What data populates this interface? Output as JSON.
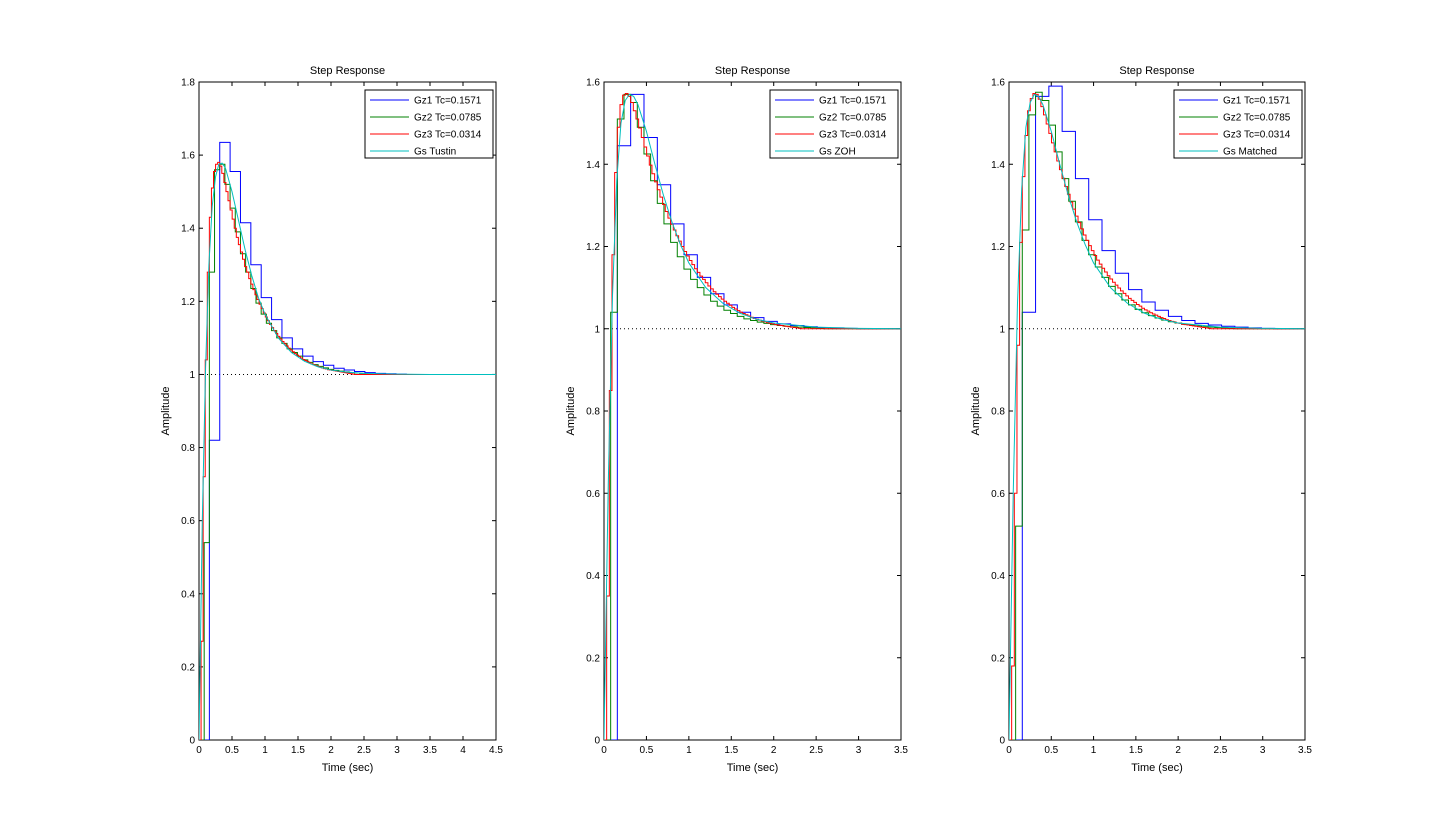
{
  "chart_data": [
    {
      "type": "line",
      "title": "Step Response",
      "xlabel": "Time (sec)",
      "ylabel": "Amplitude",
      "xlim": [
        0,
        4.5
      ],
      "ylim": [
        0,
        1.8
      ],
      "xticks": [
        0,
        0.5,
        1,
        1.5,
        2,
        2.5,
        3,
        3.5,
        4,
        4.5
      ],
      "yticks": [
        0,
        0.2,
        0.4,
        0.6,
        0.8,
        1,
        1.2,
        1.4,
        1.6,
        1.8
      ],
      "xtick_labels": [
        "0",
        "0.5",
        "1",
        "1.5",
        "2",
        "2.5",
        "3",
        "3.5",
        "4",
        "4.5"
      ],
      "ytick_labels": [
        "0",
        "0.2",
        "0.4",
        "0.6",
        "0.8",
        "1",
        "1.2",
        "1.4",
        "1.6",
        "1.8"
      ],
      "legend_position": "top-right",
      "final_value": 1,
      "series": [
        {
          "name": "Gz1 Tc=0.1571",
          "color": "#0000ff",
          "style": "stairs",
          "Ts": 0.1571,
          "y": [
            0,
            0.82,
            1.635,
            1.555,
            1.415,
            1.3,
            1.21,
            1.15,
            1.1,
            1.07,
            1.05,
            1.035,
            1.025,
            1.017,
            1.012,
            1.008,
            1.005,
            1.003,
            1.002,
            1.001,
            1.0
          ]
        },
        {
          "name": "Gz2 Tc=0.0785",
          "color": "#008000",
          "style": "stairs",
          "Ts": 0.0785,
          "y": [
            0,
            0.54,
            1.28,
            1.56,
            1.575,
            1.52,
            1.455,
            1.39,
            1.33,
            1.28,
            1.235,
            1.195,
            1.165,
            1.14,
            1.12,
            1.1,
            1.085,
            1.07,
            1.06,
            1.05,
            1.04,
            1.033,
            1.027,
            1.022,
            1.018,
            1.014,
            1.011,
            1.009,
            1.007,
            1.005,
            1.004,
            1.003,
            1.002,
            1.001,
            1.0
          ]
        },
        {
          "name": "Gz3 Tc=0.0314",
          "color": "#ff0000",
          "style": "stairs",
          "Ts": 0.0314,
          "y": [
            0,
            0.27,
            0.72,
            1.04,
            1.28,
            1.43,
            1.51,
            1.555,
            1.575,
            1.58,
            1.57,
            1.55,
            1.525,
            1.5,
            1.475,
            1.45,
            1.425,
            1.4,
            1.375,
            1.355,
            1.335,
            1.315,
            1.295,
            1.28,
            1.262,
            1.247,
            1.232,
            1.218,
            1.205,
            1.192,
            1.18,
            1.168,
            1.157,
            1.147,
            1.137,
            1.128,
            1.12,
            1.112,
            1.104,
            1.097,
            1.09,
            1.084,
            1.078,
            1.072,
            1.067,
            1.062,
            1.057,
            1.053,
            1.049,
            1.045,
            1.041,
            1.038,
            1.035,
            1.032,
            1.029,
            1.027,
            1.024,
            1.022,
            1.02,
            1.018,
            1.016,
            1.015,
            1.013,
            1.012,
            1.011,
            1.01,
            1.009,
            1.008,
            1.007,
            1.006,
            1.005,
            1.004,
            1.003,
            1.002,
            1.001,
            1.0
          ]
        },
        {
          "name": "Gs Tustin",
          "color": "#00bfbf",
          "style": "line",
          "x": [
            0,
            0.05,
            0.1,
            0.15,
            0.2,
            0.25,
            0.3,
            0.35,
            0.4,
            0.5,
            0.6,
            0.7,
            0.8,
            0.9,
            1.0,
            1.2,
            1.4,
            1.6,
            1.8,
            2.0,
            2.2,
            2.5,
            3.0,
            3.5,
            4.0,
            4.5
          ],
          "y": [
            0,
            0.6,
            1.02,
            1.3,
            1.46,
            1.54,
            1.575,
            1.578,
            1.565,
            1.5,
            1.42,
            1.34,
            1.27,
            1.21,
            1.165,
            1.1,
            1.06,
            1.036,
            1.021,
            1.012,
            1.007,
            1.003,
            1.001,
            1.0,
            1.0,
            1.0
          ]
        }
      ]
    },
    {
      "type": "line",
      "title": "Step Response",
      "xlabel": "Time (sec)",
      "ylabel": "Amplitude",
      "xlim": [
        0,
        3.5
      ],
      "ylim": [
        0,
        1.6
      ],
      "xticks": [
        0,
        0.5,
        1,
        1.5,
        2,
        2.5,
        3,
        3.5
      ],
      "yticks": [
        0,
        0.2,
        0.4,
        0.6,
        0.8,
        1,
        1.2,
        1.4,
        1.6
      ],
      "xtick_labels": [
        "0",
        "0.5",
        "1",
        "1.5",
        "2",
        "2.5",
        "3",
        "3.5"
      ],
      "ytick_labels": [
        "0",
        "0.2",
        "0.4",
        "0.6",
        "0.8",
        "1",
        "1.2",
        "1.4",
        "1.6"
      ],
      "legend_position": "top-right",
      "final_value": 1,
      "series": [
        {
          "name": "Gz1 Tc=0.1571",
          "color": "#0000ff",
          "style": "stairs",
          "Ts": 0.1571,
          "y": [
            0,
            1.445,
            1.57,
            1.465,
            1.35,
            1.255,
            1.18,
            1.125,
            1.085,
            1.058,
            1.04,
            1.027,
            1.018,
            1.012,
            1.008,
            1.005,
            1.003,
            1.002,
            1.001,
            1.0
          ]
        },
        {
          "name": "Gz2 Tc=0.0785",
          "color": "#008000",
          "style": "stairs",
          "Ts": 0.0785,
          "y": [
            0,
            1.04,
            1.51,
            1.57,
            1.55,
            1.49,
            1.425,
            1.36,
            1.305,
            1.255,
            1.21,
            1.175,
            1.145,
            1.12,
            1.1,
            1.082,
            1.067,
            1.055,
            1.045,
            1.037,
            1.03,
            1.024,
            1.02,
            1.016,
            1.013,
            1.01,
            1.008,
            1.006,
            1.005,
            1.004,
            1.003,
            1.002,
            1.001,
            1.0
          ]
        },
        {
          "name": "Gz3 Tc=0.0314",
          "color": "#ff0000",
          "style": "stairs",
          "Ts": 0.0314,
          "y": [
            0,
            0.35,
            0.85,
            1.18,
            1.38,
            1.49,
            1.545,
            1.568,
            1.572,
            1.565,
            1.55,
            1.53,
            1.51,
            1.488,
            1.465,
            1.442,
            1.42,
            1.398,
            1.377,
            1.357,
            1.338,
            1.32,
            1.302,
            1.285,
            1.269,
            1.254,
            1.24,
            1.226,
            1.213,
            1.2,
            1.188,
            1.177,
            1.166,
            1.156,
            1.146,
            1.137,
            1.128,
            1.12,
            1.112,
            1.104,
            1.097,
            1.09,
            1.084,
            1.078,
            1.072,
            1.067,
            1.062,
            1.057,
            1.052,
            1.048,
            1.044,
            1.04,
            1.037,
            1.034,
            1.031,
            1.028,
            1.025,
            1.023,
            1.021,
            1.019,
            1.017,
            1.015,
            1.013,
            1.012,
            1.01,
            1.009,
            1.008,
            1.007,
            1.006,
            1.005,
            1.004,
            1.003,
            1.002,
            1.001,
            1.0
          ]
        },
        {
          "name": "Gs ZOH",
          "color": "#00bfbf",
          "style": "line",
          "x": [
            0,
            0.05,
            0.1,
            0.15,
            0.2,
            0.25,
            0.3,
            0.35,
            0.4,
            0.5,
            0.6,
            0.7,
            0.8,
            0.9,
            1.0,
            1.2,
            1.4,
            1.6,
            1.8,
            2.0,
            2.5,
            3.0,
            3.5
          ],
          "y": [
            0,
            0.62,
            1.08,
            1.36,
            1.5,
            1.555,
            1.57,
            1.565,
            1.545,
            1.48,
            1.4,
            1.325,
            1.26,
            1.205,
            1.16,
            1.1,
            1.062,
            1.038,
            1.023,
            1.014,
            1.004,
            1.001,
            1.0
          ]
        }
      ]
    },
    {
      "type": "line",
      "title": "Step Response",
      "xlabel": "Time (sec)",
      "ylabel": "Amplitude",
      "xlim": [
        0,
        3.5
      ],
      "ylim": [
        0,
        1.6
      ],
      "xticks": [
        0,
        0.5,
        1,
        1.5,
        2,
        2.5,
        3,
        3.5
      ],
      "yticks": [
        0,
        0.2,
        0.4,
        0.6,
        0.8,
        1,
        1.2,
        1.4,
        1.6
      ],
      "xtick_labels": [
        "0",
        "0.5",
        "1",
        "1.5",
        "2",
        "2.5",
        "3",
        "3.5"
      ],
      "ytick_labels": [
        "0",
        "0.2",
        "0.4",
        "0.6",
        "0.8",
        "1",
        "1.2",
        "1.4",
        "1.6"
      ],
      "legend_position": "top-right",
      "final_value": 1,
      "series": [
        {
          "name": "Gz1 Tc=0.1571",
          "color": "#0000ff",
          "style": "stairs",
          "Ts": 0.1571,
          "y": [
            0,
            1.04,
            1.565,
            1.59,
            1.48,
            1.365,
            1.265,
            1.19,
            1.135,
            1.095,
            1.065,
            1.045,
            1.03,
            1.02,
            1.013,
            1.009,
            1.006,
            1.004,
            1.002,
            1.001,
            1.0
          ]
        },
        {
          "name": "Gz2 Tc=0.0785",
          "color": "#008000",
          "style": "stairs",
          "Ts": 0.0785,
          "y": [
            0,
            0.52,
            1.24,
            1.52,
            1.575,
            1.555,
            1.495,
            1.43,
            1.365,
            1.31,
            1.26,
            1.215,
            1.18,
            1.15,
            1.125,
            1.103,
            1.085,
            1.07,
            1.058,
            1.047,
            1.039,
            1.032,
            1.026,
            1.021,
            1.017,
            1.014,
            1.011,
            1.009,
            1.007,
            1.005,
            1.004,
            1.003,
            1.002,
            1.001,
            1.0
          ]
        },
        {
          "name": "Gz3 Tc=0.0314",
          "color": "#ff0000",
          "style": "stairs",
          "Ts": 0.0314,
          "y": [
            0,
            0.18,
            0.6,
            0.96,
            1.21,
            1.37,
            1.47,
            1.53,
            1.56,
            1.572,
            1.57,
            1.558,
            1.54,
            1.52,
            1.498,
            1.475,
            1.452,
            1.43,
            1.408,
            1.387,
            1.366,
            1.346,
            1.327,
            1.308,
            1.291,
            1.274,
            1.258,
            1.243,
            1.228,
            1.215,
            1.202,
            1.19,
            1.178,
            1.167,
            1.157,
            1.147,
            1.138,
            1.129,
            1.121,
            1.113,
            1.106,
            1.099,
            1.092,
            1.086,
            1.08,
            1.074,
            1.069,
            1.064,
            1.059,
            1.055,
            1.05,
            1.046,
            1.043,
            1.039,
            1.036,
            1.033,
            1.03,
            1.027,
            1.025,
            1.022,
            1.02,
            1.018,
            1.016,
            1.014,
            1.013,
            1.011,
            1.01,
            1.009,
            1.008,
            1.007,
            1.006,
            1.005,
            1.004,
            1.003,
            1.002,
            1.001,
            1.0
          ]
        },
        {
          "name": "Gs Matched",
          "color": "#00bfbf",
          "style": "line",
          "x": [
            0,
            0.05,
            0.1,
            0.15,
            0.2,
            0.25,
            0.3,
            0.35,
            0.4,
            0.5,
            0.6,
            0.7,
            0.8,
            0.9,
            1.0,
            1.2,
            1.4,
            1.6,
            1.8,
            2.0,
            2.5,
            3.0,
            3.5
          ],
          "y": [
            0,
            0.6,
            1.06,
            1.34,
            1.49,
            1.55,
            1.57,
            1.565,
            1.545,
            1.48,
            1.4,
            1.325,
            1.26,
            1.205,
            1.16,
            1.1,
            1.062,
            1.038,
            1.023,
            1.014,
            1.004,
            1.001,
            1.0
          ]
        }
      ]
    }
  ]
}
